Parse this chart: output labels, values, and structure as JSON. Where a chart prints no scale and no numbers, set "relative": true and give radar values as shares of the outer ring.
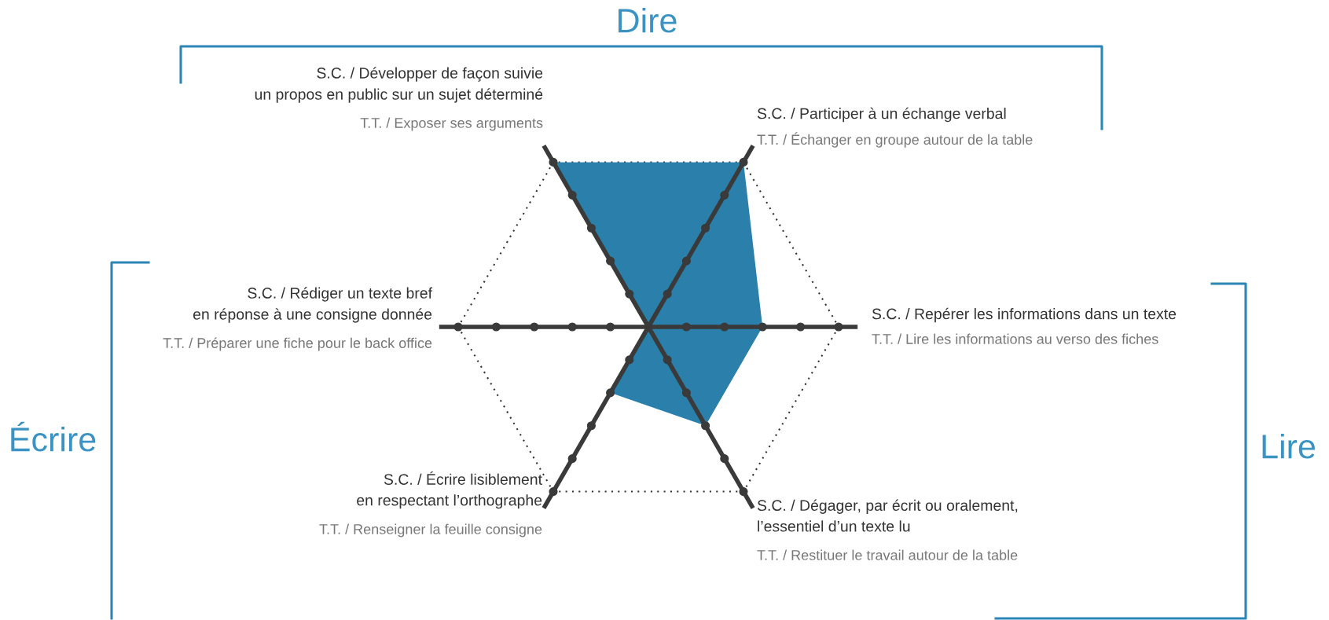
{
  "chart_data": {
    "type": "radar",
    "relative": true,
    "categories": [
      "S.C. / Participer à un échange verbal",
      "S.C. / Repérer les informations dans un texte",
      "S.C. / Dégager, par écrit ou oralement,\nl’essentiel d’un texte lu",
      "S.C. / Écrire lisiblement\nen respectant l’orthographe",
      "S.C. / Rédiger un texte bref\nen réponse à une consigne donnée",
      "S.C. / Développer de façon suivie\nun propos en public sur un sujet déterminé"
    ],
    "series": [
      {
        "color": "#2a80aa",
        "values": [
          1,
          0.6,
          0.6,
          0.4,
          0,
          1
        ]
      }
    ],
    "annotations": [
      "T.T. / Échanger en groupe autour de la table",
      "T.T. / Lire les informations au verso des fiches",
      "T.T. / Restituer le travail autour de la table",
      "T.T. / Renseigner la feuille consigne",
      "T.T. / Préparer une fiche pour le back office",
      "T.T. / Exposer ses arguments",
      "Dire",
      "Lire",
      "Écrire"
    ]
  }
}
